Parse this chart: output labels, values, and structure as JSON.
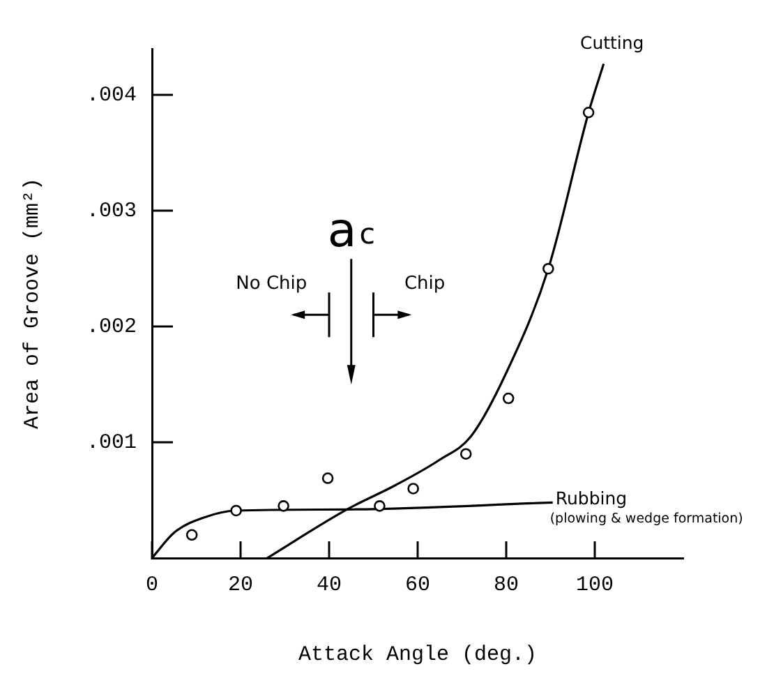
{
  "chart_data": {
    "type": "line",
    "xlabel": "Attack Angle (deg.)",
    "ylabel": "Area of Groove (mm²)",
    "xlim": [
      0,
      120
    ],
    "xticks": [
      0,
      20,
      40,
      60,
      80,
      100
    ],
    "ylim": [
      0,
      0.0044
    ],
    "yticks": [
      {
        "value": 0.001,
        "label": ".001"
      },
      {
        "value": 0.002,
        "label": ".002"
      },
      {
        "value": 0.003,
        "label": ".003"
      },
      {
        "value": 0.004,
        "label": ".004"
      }
    ],
    "grid": false,
    "legend": false,
    "line_style": "solid",
    "series": [
      {
        "type": "scatter",
        "marker": "circle",
        "color": "#000000",
        "x": [
          9,
          19,
          29.7,
          39.7,
          51.4,
          59,
          70.9,
          80.5,
          89.5,
          98.6
        ],
        "values": [
          0.0002,
          0.00041,
          0.00045,
          0.00069,
          0.00045,
          0.0006,
          0.0009,
          0.00138,
          0.0025,
          0.00385
        ]
      },
      {
        "name": "Cutting",
        "color": "#000000",
        "x": [
          26,
          44,
          55,
          65,
          72,
          80,
          89.5,
          98.6,
          102
        ],
        "values": [
          0,
          0.00042,
          0.00063,
          0.00085,
          0.00105,
          0.0016,
          0.0025,
          0.00385,
          0.00427
        ]
      },
      {
        "name": "Rubbing",
        "color": "#000000",
        "x": [
          0,
          5,
          11.7,
          19,
          44,
          90.5
        ],
        "values": [
          0,
          0.00022,
          0.00035,
          0.00041,
          0.00042,
          0.00048
        ]
      }
    ],
    "annotations": [
      "(plowing & wedge formation)",
      "a$_{c}$",
      "No Chip",
      "Chip"
    ]
  }
}
